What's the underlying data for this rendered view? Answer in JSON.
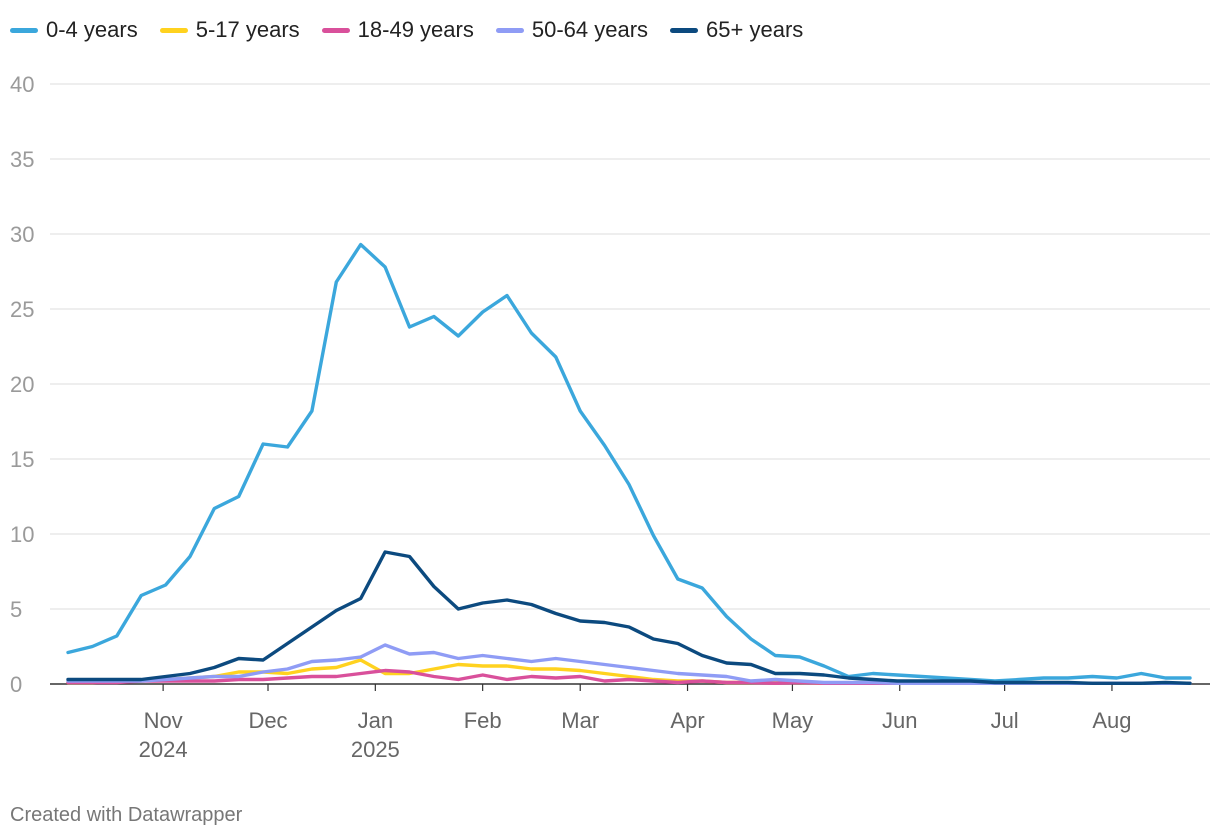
{
  "chart_data": {
    "type": "line",
    "title": "",
    "xlabel": "",
    "ylabel": "",
    "ylim": [
      0,
      40
    ],
    "yticks": [
      0,
      5,
      10,
      15,
      20,
      25,
      30,
      35,
      40
    ],
    "x_week_index_range": [
      0,
      46
    ],
    "x_ticks": [
      {
        "label": "Nov",
        "sublabel": "2024",
        "week": 3.9
      },
      {
        "label": "Dec",
        "sublabel": "",
        "week": 8.2
      },
      {
        "label": "Jan",
        "sublabel": "2025",
        "week": 12.6
      },
      {
        "label": "Feb",
        "sublabel": "",
        "week": 17.0
      },
      {
        "label": "Mar",
        "sublabel": "",
        "week": 21.0
      },
      {
        "label": "Apr",
        "sublabel": "",
        "week": 25.4
      },
      {
        "label": "May",
        "sublabel": "",
        "week": 29.7
      },
      {
        "label": "Jun",
        "sublabel": "",
        "week": 34.1
      },
      {
        "label": "Jul",
        "sublabel": "",
        "week": 38.4
      },
      {
        "label": "Aug",
        "sublabel": "",
        "week": 42.8
      }
    ],
    "legend_position": "top-left",
    "series": [
      {
        "name": "0-4 years",
        "color": "#3ba7dc",
        "values": [
          2.1,
          2.5,
          3.2,
          5.9,
          6.6,
          8.5,
          11.7,
          12.5,
          16.0,
          15.8,
          18.2,
          26.8,
          29.3,
          27.8,
          23.8,
          24.5,
          23.2,
          24.8,
          25.9,
          23.4,
          21.8,
          18.2,
          15.9,
          13.3,
          9.9,
          7.0,
          6.4,
          4.5,
          3.0,
          1.9,
          1.8,
          1.2,
          0.5,
          0.7,
          0.6,
          0.5,
          0.4,
          0.3,
          0.2,
          0.3,
          0.4,
          0.4,
          0.5,
          0.4,
          0.7,
          0.4,
          0.4
        ]
      },
      {
        "name": "5-17 years",
        "color": "#ffd21f",
        "values": [
          0.1,
          0.1,
          0.2,
          0.2,
          0.3,
          0.4,
          0.5,
          0.8,
          0.8,
          0.7,
          1.0,
          1.1,
          1.6,
          0.7,
          0.7,
          1.0,
          1.3,
          1.2,
          1.2,
          1.0,
          1.0,
          0.9,
          0.7,
          0.5,
          0.3,
          0.2,
          0.2,
          0.1,
          0.1,
          0.1,
          0.1,
          0.05,
          0.05,
          0.05,
          0.05,
          0.05,
          0.05,
          0.05,
          0.05,
          0.05,
          0.05,
          0.05,
          0.05,
          0.05,
          0.05,
          0.05,
          0.05
        ]
      },
      {
        "name": "18-49 years",
        "color": "#d9509b",
        "values": [
          0.1,
          0.1,
          0.1,
          0.2,
          0.2,
          0.2,
          0.2,
          0.3,
          0.3,
          0.4,
          0.5,
          0.5,
          0.7,
          0.9,
          0.8,
          0.5,
          0.3,
          0.6,
          0.3,
          0.5,
          0.4,
          0.5,
          0.2,
          0.3,
          0.2,
          0.1,
          0.2,
          0.1,
          0.1,
          0.05,
          0.1,
          0.05,
          0.05,
          0.05,
          0.05,
          0.05,
          0.05,
          0.05,
          0.05,
          0.05,
          0.05,
          0.05,
          0.05,
          0.05,
          0.05,
          0.05,
          0.05
        ]
      },
      {
        "name": "50-64 years",
        "color": "#8f9cf5",
        "values": [
          0.2,
          0.2,
          0.2,
          0.2,
          0.3,
          0.4,
          0.5,
          0.5,
          0.8,
          1.0,
          1.5,
          1.6,
          1.8,
          2.6,
          2.0,
          2.1,
          1.7,
          1.9,
          1.7,
          1.5,
          1.7,
          1.5,
          1.3,
          1.1,
          0.9,
          0.7,
          0.6,
          0.5,
          0.2,
          0.3,
          0.2,
          0.1,
          0.1,
          0.1,
          0.05,
          0.05,
          0.05,
          0.05,
          0.05,
          0.05,
          0.05,
          0.05,
          0.05,
          0.05,
          0.05,
          0.05,
          0.05
        ]
      },
      {
        "name": "65+ years",
        "color": "#0c4a7f",
        "values": [
          0.3,
          0.3,
          0.3,
          0.3,
          0.5,
          0.7,
          1.1,
          1.7,
          1.6,
          2.7,
          3.8,
          4.9,
          5.7,
          8.8,
          8.5,
          6.5,
          5.0,
          5.4,
          5.6,
          5.3,
          4.7,
          4.2,
          4.1,
          3.8,
          3.0,
          2.7,
          1.9,
          1.4,
          1.3,
          0.7,
          0.7,
          0.6,
          0.4,
          0.3,
          0.2,
          0.2,
          0.2,
          0.2,
          0.1,
          0.1,
          0.1,
          0.1,
          0.05,
          0.05,
          0.05,
          0.1,
          0.05
        ]
      }
    ]
  },
  "footer": {
    "credit": "Created with Datawrapper"
  }
}
